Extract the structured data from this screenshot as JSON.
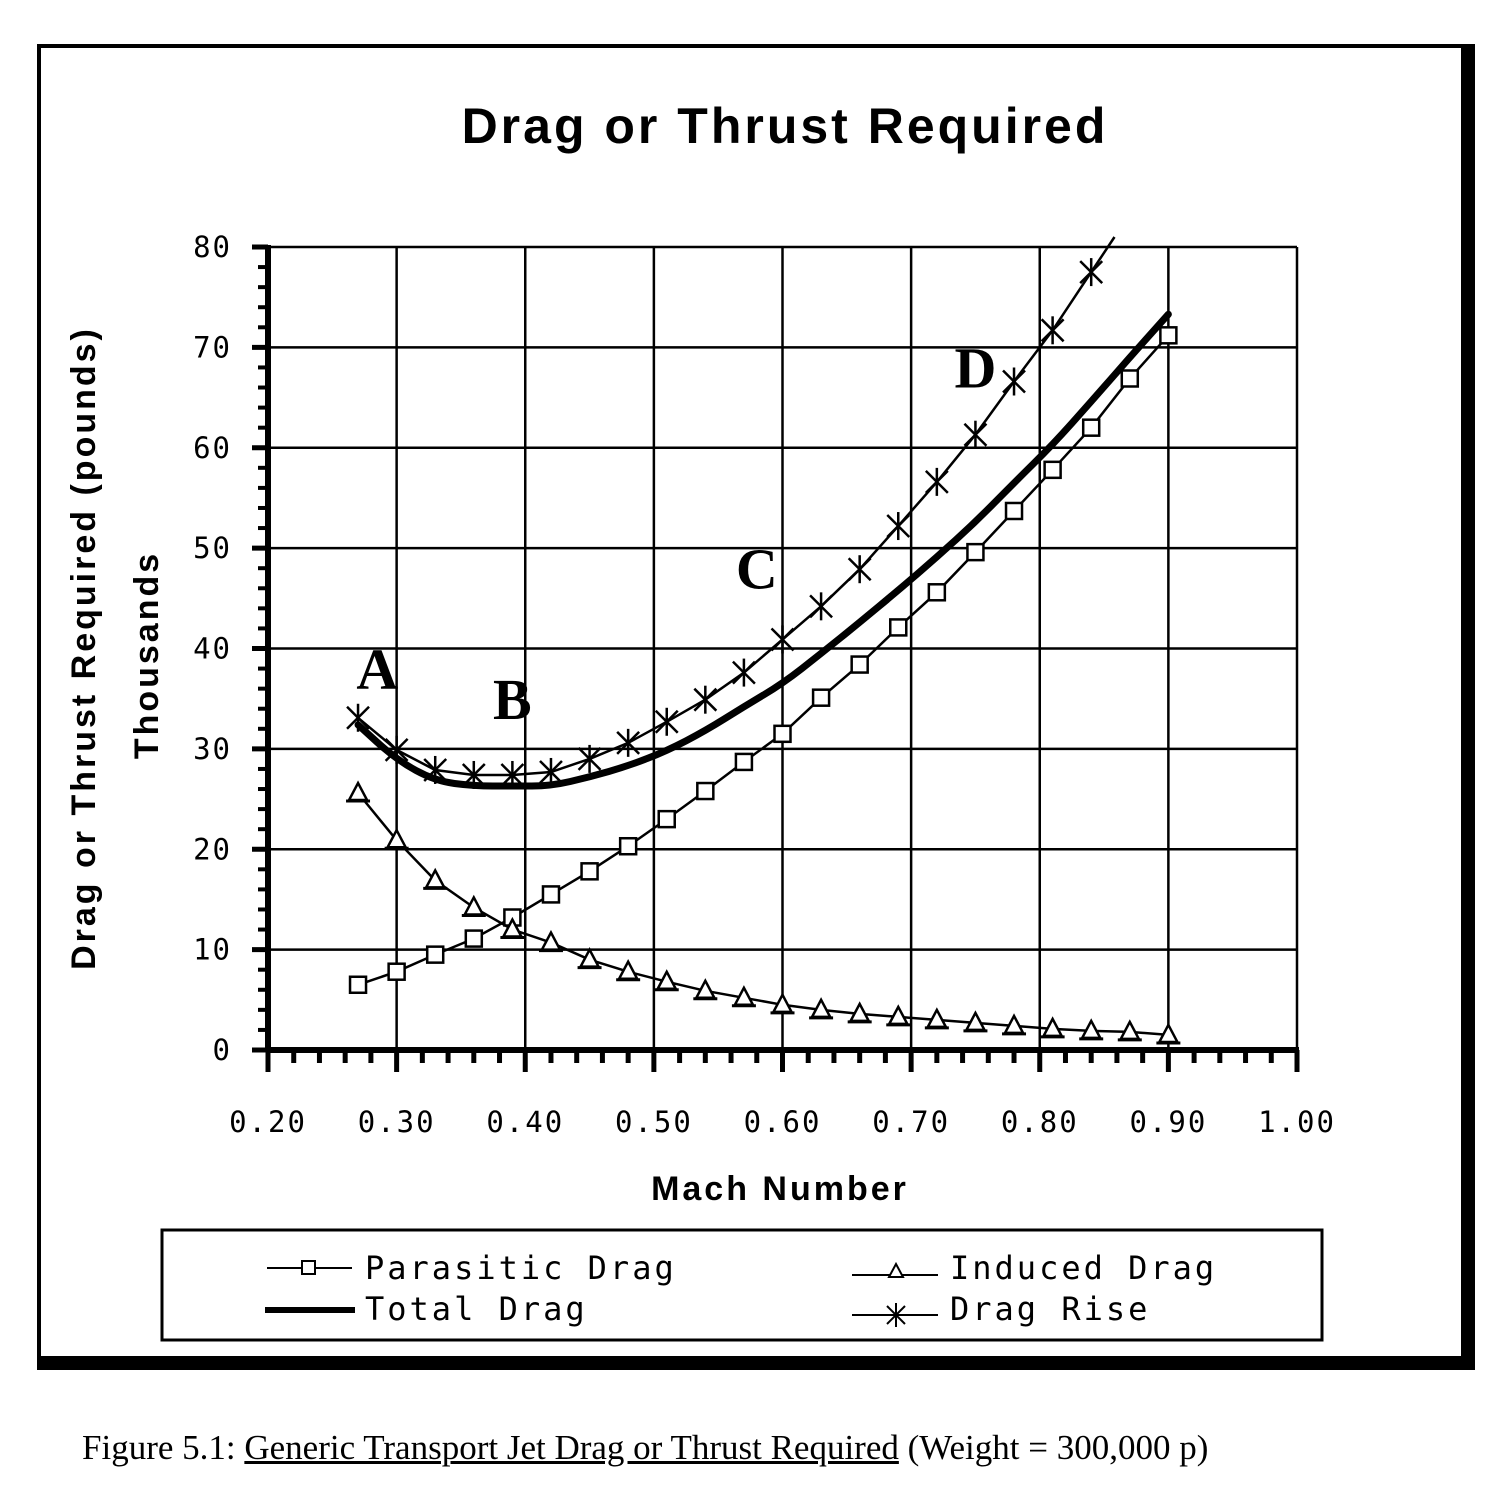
{
  "figure": {
    "caption_prefix": "Figure 5.1: ",
    "caption_title": "Generic Transport Jet Drag or Thrust Required",
    "caption_suffix": " (Weight = 300,000 p)"
  },
  "chart_data": {
    "type": "line",
    "title": "Drag or Thrust Required",
    "xlabel": "Mach Number",
    "ylabel": "Drag or Thrust Required (pounds)",
    "ylabel_units": "Thousands",
    "xlim": [
      0.2,
      1.0
    ],
    "ylim": [
      0,
      80
    ],
    "x_ticks": [
      "0.20",
      "0.30",
      "0.40",
      "0.50",
      "0.60",
      "0.70",
      "0.80",
      "0.90",
      "1.00"
    ],
    "y_ticks": [
      "0",
      "10",
      "20",
      "30",
      "40",
      "50",
      "60",
      "70",
      "80"
    ],
    "grid": true,
    "legend_position": "bottom",
    "x": [
      0.27,
      0.3,
      0.33,
      0.36,
      0.39,
      0.42,
      0.45,
      0.48,
      0.51,
      0.54,
      0.57,
      0.6,
      0.63,
      0.66,
      0.69,
      0.72,
      0.75,
      0.78,
      0.81,
      0.84,
      0.87,
      0.9
    ],
    "series": [
      {
        "name": "Parasitic Drag",
        "marker": "square",
        "line": "thin",
        "values": [
          6.5,
          7.8,
          9.5,
          11.1,
          13.2,
          15.5,
          17.8,
          20.3,
          23.0,
          25.8,
          28.7,
          31.5,
          35.1,
          38.4,
          42.1,
          45.6,
          49.6,
          53.7,
          57.8,
          62.0,
          66.9,
          71.2
        ]
      },
      {
        "name": "Induced Drag",
        "marker": "triangle",
        "line": "thin",
        "values": [
          25.6,
          20.9,
          16.9,
          14.2,
          12.0,
          10.7,
          9.0,
          7.8,
          6.8,
          5.9,
          5.2,
          4.5,
          4.0,
          3.6,
          3.3,
          3.0,
          2.7,
          2.4,
          2.1,
          1.9,
          1.8,
          1.5
        ]
      },
      {
        "name": "Total Drag",
        "marker": "none",
        "line": "thick",
        "values": [
          32.4,
          28.9,
          26.8,
          26.3,
          26.3,
          26.3,
          27.2,
          28.3,
          29.8,
          31.8,
          34.2,
          36.5,
          39.5,
          42.6,
          45.8,
          49.1,
          52.6,
          56.5,
          60.3,
          64.6,
          69.0,
          73.3
        ]
      },
      {
        "name": "Drag Rise",
        "marker": "asterisk",
        "line": "thin",
        "values": [
          33.1,
          29.9,
          27.9,
          27.4,
          27.4,
          27.7,
          29.0,
          30.6,
          32.7,
          34.9,
          37.6,
          40.9,
          44.2,
          47.9,
          52.2,
          56.6,
          61.3,
          66.6,
          71.7,
          77.5
        ]
      }
    ],
    "annotations": [
      {
        "label": "A",
        "x": 0.285,
        "y": 36
      },
      {
        "label": "B",
        "x": 0.39,
        "y": 33
      },
      {
        "label": "C",
        "x": 0.58,
        "y": 46
      },
      {
        "label": "D",
        "x": 0.75,
        "y": 66
      }
    ]
  },
  "legend": {
    "items": [
      {
        "label": "Parasitic Drag",
        "marker": "square"
      },
      {
        "label": "Induced Drag",
        "marker": "triangle"
      },
      {
        "label": "Total Drag",
        "marker": "thick-line"
      },
      {
        "label": "Drag Rise",
        "marker": "asterisk"
      }
    ]
  }
}
